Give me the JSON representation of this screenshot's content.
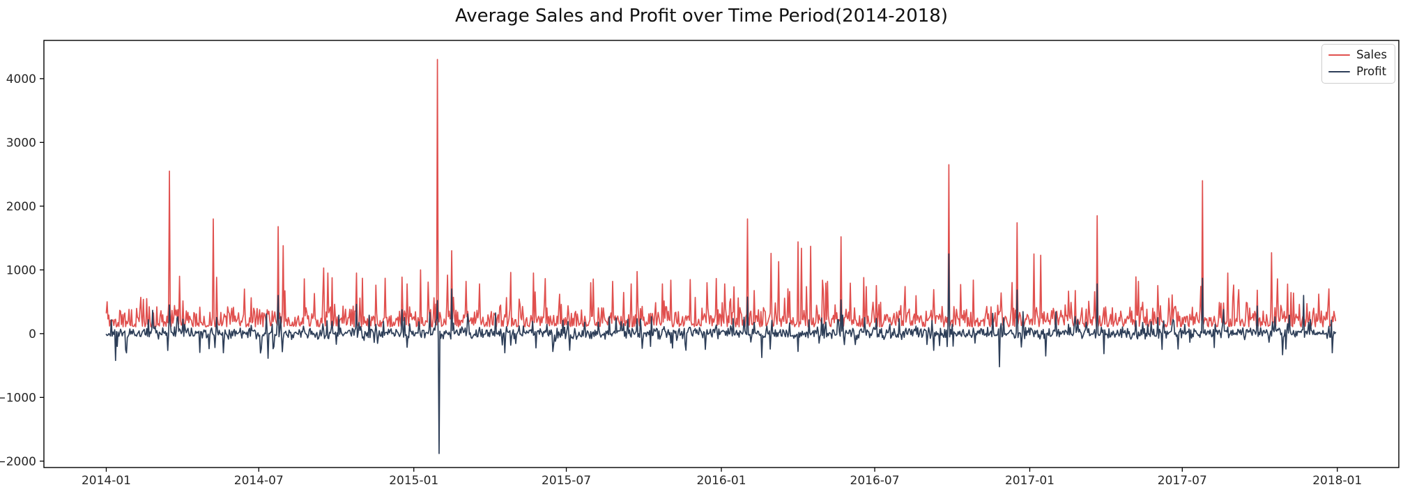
{
  "chart_data": {
    "type": "line",
    "title": "Average Sales and Profit over Time Period(2014-2018)",
    "x_start": "2014-01-01",
    "x_end": "2017-12-30",
    "xlim_dates": [
      "2013-10-19",
      "2018-03-15"
    ],
    "ylim": [
      -2100,
      4600
    ],
    "grid": false,
    "legend_position": "upper right",
    "x_ticks": [
      {
        "label": "2014-01",
        "date": "2014-01-01"
      },
      {
        "label": "2014-07",
        "date": "2014-07-01"
      },
      {
        "label": "2015-01",
        "date": "2015-01-01"
      },
      {
        "label": "2015-07",
        "date": "2015-07-01"
      },
      {
        "label": "2016-01",
        "date": "2016-01-01"
      },
      {
        "label": "2016-07",
        "date": "2016-07-01"
      },
      {
        "label": "2017-01",
        "date": "2017-01-01"
      },
      {
        "label": "2017-07",
        "date": "2017-07-01"
      },
      {
        "label": "2018-01",
        "date": "2018-01-01"
      }
    ],
    "y_ticks": [
      {
        "label": "−2000",
        "value": -2000
      },
      {
        "label": "−1000",
        "value": -1000
      },
      {
        "label": "0",
        "value": 0
      },
      {
        "label": "1000",
        "value": 1000
      },
      {
        "label": "2000",
        "value": 2000
      },
      {
        "label": "3000",
        "value": 3000
      },
      {
        "label": "4000",
        "value": 4000
      }
    ],
    "style": {
      "background": "#ffffff",
      "spine_color": "#000000",
      "tick_label_color": "#262626",
      "title_color": "#111111",
      "legend_border": "#cccccc"
    },
    "seed": 1337,
    "series": [
      {
        "name": "Sales",
        "color": "#e0504e",
        "line_width": 1.7,
        "baseline_summary": "daily values mostly 100-450 with frequent spikes 500-1000",
        "synth": {
          "base": 108,
          "var": 175,
          "pow": 1.6,
          "midProb": 0.3,
          "midMin": 60,
          "midMax": 240,
          "spikeProb": 0.055,
          "spikeMin": 250,
          "spikeMax": 700,
          "min": 40
        },
        "spikes": [
          [
            "2014-01-02",
            500
          ],
          [
            "2014-03-17",
            2550
          ],
          [
            "2014-03-29",
            900
          ],
          [
            "2014-05-08",
            1800
          ],
          [
            "2014-07-24",
            1680
          ],
          [
            "2014-07-30",
            1380
          ],
          [
            "2014-08-24",
            860
          ],
          [
            "2014-09-16",
            1030
          ],
          [
            "2014-09-21",
            950
          ],
          [
            "2014-10-25",
            950
          ],
          [
            "2014-11-01",
            870
          ],
          [
            "2014-11-28",
            870
          ],
          [
            "2014-12-24",
            780
          ],
          [
            "2015-01-09",
            1000
          ],
          [
            "2015-01-29",
            4300
          ],
          [
            "2015-02-15",
            1300
          ],
          [
            "2015-03-04",
            820
          ],
          [
            "2015-03-20",
            780
          ],
          [
            "2015-04-26",
            960
          ],
          [
            "2015-05-23",
            950
          ],
          [
            "2015-07-30",
            800
          ],
          [
            "2015-08-25",
            820
          ],
          [
            "2015-09-16",
            780
          ],
          [
            "2015-10-23",
            780
          ],
          [
            "2015-12-15",
            800
          ],
          [
            "2016-01-05",
            780
          ],
          [
            "2016-02-01",
            1800
          ],
          [
            "2016-02-29",
            1260
          ],
          [
            "2016-03-09",
            1130
          ],
          [
            "2016-04-01",
            1440
          ],
          [
            "2016-04-05",
            1340
          ],
          [
            "2016-04-16",
            1370
          ],
          [
            "2016-05-06",
            820
          ],
          [
            "2016-05-22",
            1520
          ],
          [
            "2016-06-18",
            880
          ],
          [
            "2016-08-06",
            740
          ],
          [
            "2016-09-27",
            2650
          ],
          [
            "2016-10-26",
            840
          ],
          [
            "2016-12-17",
            1740
          ],
          [
            "2017-01-06",
            1250
          ],
          [
            "2017-01-14",
            1230
          ],
          [
            "2017-03-22",
            1850
          ],
          [
            "2017-05-10",
            820
          ],
          [
            "2017-07-25",
            2400
          ],
          [
            "2017-08-24",
            950
          ],
          [
            "2017-10-15",
            1270
          ],
          [
            "2017-10-22",
            860
          ],
          [
            "2017-12-10",
            620
          ]
        ]
      },
      {
        "name": "Profit",
        "color": "#2d3e58",
        "line_width": 1.7,
        "baseline_summary": "daily values oscillating around 0 (±100) with occasional dips to -500 and peaks to +1250",
        "synth": {
          "center": 8,
          "spread": 105,
          "dipProb": 0.045,
          "dipMin": 90,
          "dipMax": 330,
          "upProb": 0.05,
          "upMin": 90,
          "upMax": 300,
          "coupling": 0.35
        },
        "spikes": [
          [
            "2014-01-12",
            -420
          ],
          [
            "2014-03-17",
            450
          ],
          [
            "2014-05-20",
            -300
          ],
          [
            "2014-07-24",
            600
          ],
          [
            "2014-10-25",
            460
          ],
          [
            "2015-01-29",
            520
          ],
          [
            "2015-01-31",
            -1880
          ],
          [
            "2015-02-15",
            700
          ],
          [
            "2015-04-19",
            -300
          ],
          [
            "2015-06-15",
            -280
          ],
          [
            "2015-09-29",
            -230
          ],
          [
            "2015-11-20",
            -260
          ],
          [
            "2016-02-01",
            575
          ],
          [
            "2016-05-22",
            530
          ],
          [
            "2016-09-27",
            1250
          ],
          [
            "2016-11-26",
            -520
          ],
          [
            "2016-12-17",
            685
          ],
          [
            "2017-01-20",
            -350
          ],
          [
            "2017-03-22",
            780
          ],
          [
            "2017-07-25",
            870
          ],
          [
            "2017-10-28",
            -330
          ],
          [
            "2017-11-22",
            600
          ],
          [
            "2017-12-26",
            -300
          ]
        ]
      }
    ]
  }
}
